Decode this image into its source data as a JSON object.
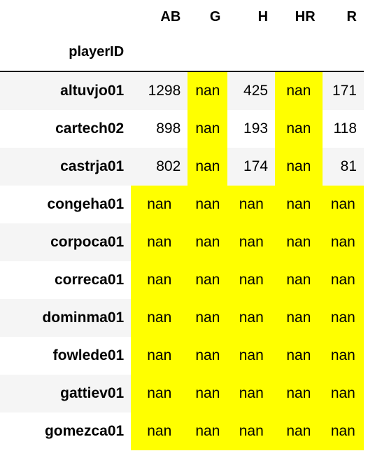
{
  "columns": [
    "AB",
    "G",
    "H",
    "HR",
    "R"
  ],
  "index_name": "playerID",
  "highlight_color": "#ffff00",
  "rows": [
    {
      "id": "altuvjo01",
      "AB": "1298",
      "G": "nan",
      "H": "425",
      "HR": "nan",
      "R": "171"
    },
    {
      "id": "cartech02",
      "AB": "898",
      "G": "nan",
      "H": "193",
      "HR": "nan",
      "R": "118"
    },
    {
      "id": "castrja01",
      "AB": "802",
      "G": "nan",
      "H": "174",
      "HR": "nan",
      "R": "81"
    },
    {
      "id": "congeha01",
      "AB": "nan",
      "G": "nan",
      "H": "nan",
      "HR": "nan",
      "R": "nan"
    },
    {
      "id": "corpoca01",
      "AB": "nan",
      "G": "nan",
      "H": "nan",
      "HR": "nan",
      "R": "nan"
    },
    {
      "id": "correca01",
      "AB": "nan",
      "G": "nan",
      "H": "nan",
      "HR": "nan",
      "R": "nan"
    },
    {
      "id": "dominma01",
      "AB": "nan",
      "G": "nan",
      "H": "nan",
      "HR": "nan",
      "R": "nan"
    },
    {
      "id": "fowlede01",
      "AB": "nan",
      "G": "nan",
      "H": "nan",
      "HR": "nan",
      "R": "nan"
    },
    {
      "id": "gattiev01",
      "AB": "nan",
      "G": "nan",
      "H": "nan",
      "HR": "nan",
      "R": "nan"
    },
    {
      "id": "gomezca01",
      "AB": "nan",
      "G": "nan",
      "H": "nan",
      "HR": "nan",
      "R": "nan"
    }
  ]
}
